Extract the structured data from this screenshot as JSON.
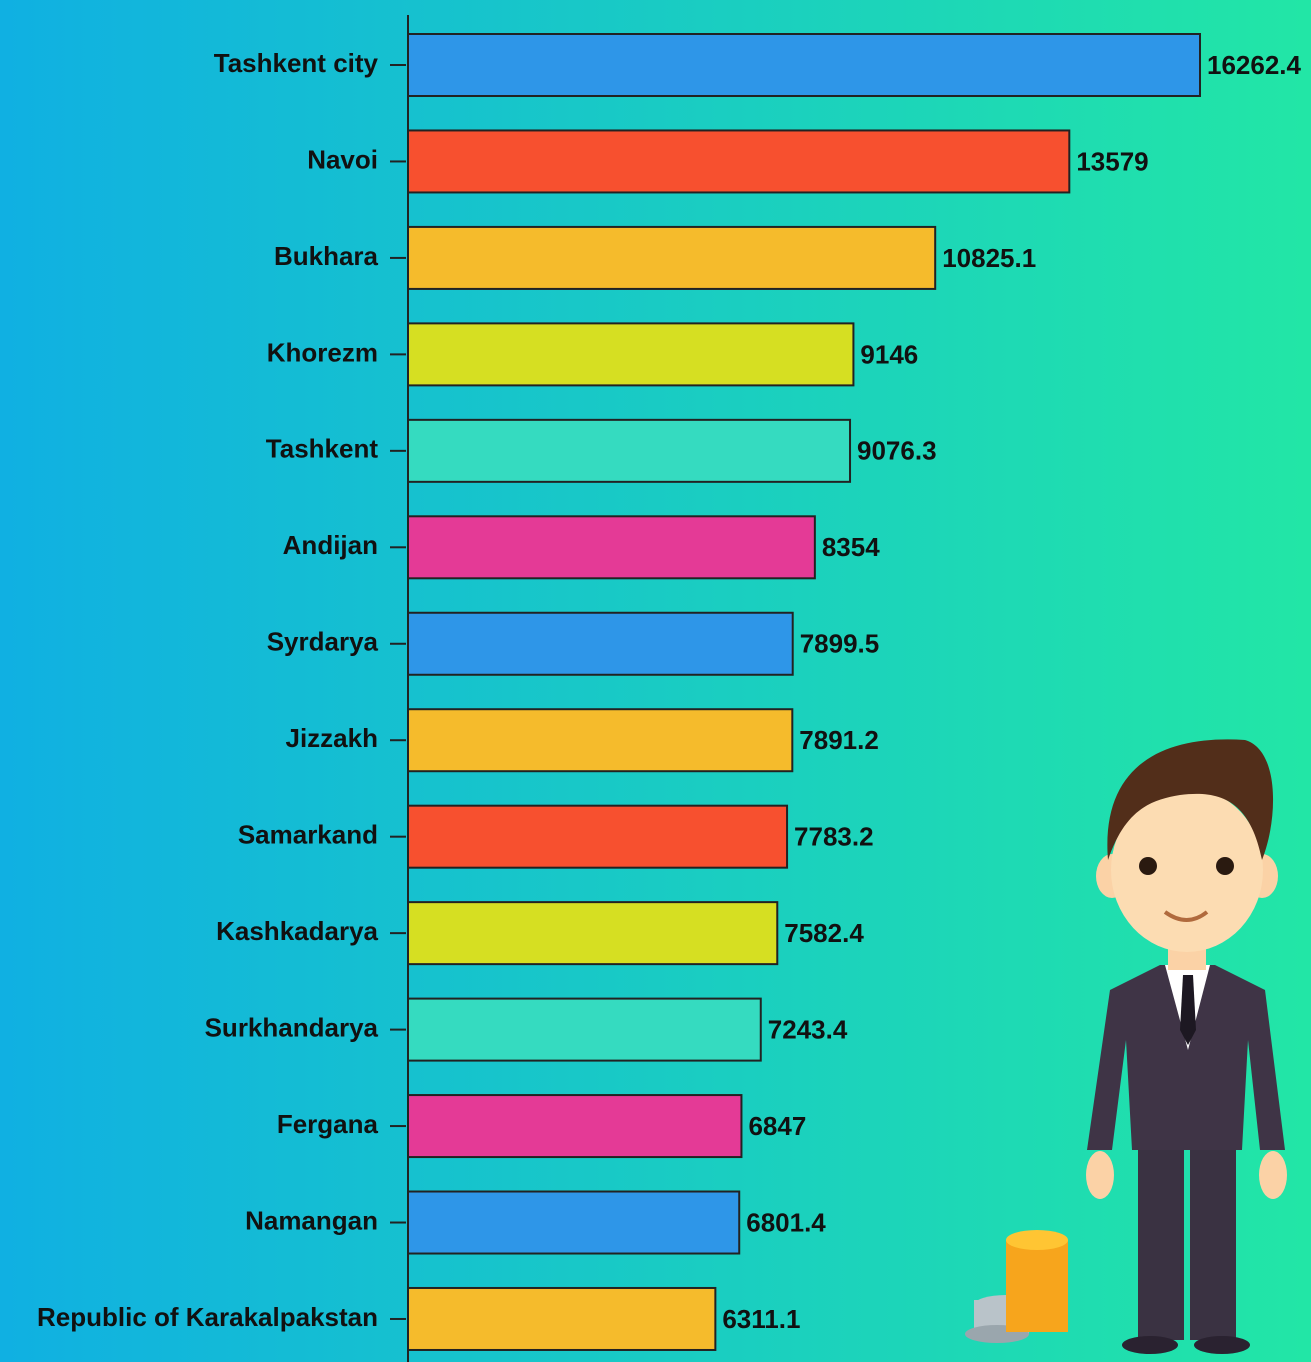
{
  "chart_data": {
    "type": "bar",
    "orientation": "horizontal",
    "categories": [
      "Tashkent city",
      "Navoi",
      "Bukhara",
      "Khorezm",
      "Tashkent",
      "Andijan",
      "Syrdarya",
      "Jizzakh",
      "Samarkand",
      "Kashkadarya",
      "Surkhandarya",
      "Fergana",
      "Namangan",
      "Republic of Karakalpakstan"
    ],
    "values": [
      16262.4,
      13579,
      10825.1,
      9146,
      9076.3,
      8354,
      7899.5,
      7891.2,
      7783.2,
      7582.4,
      7243.4,
      6847,
      6801.4,
      6311.1
    ],
    "colors": [
      "#2e96e8",
      "#f7502f",
      "#f5bb2c",
      "#d6df22",
      "#35dbc0",
      "#e43a96",
      "#2e96e8",
      "#f5bb2c",
      "#f7502f",
      "#d6df22",
      "#35dbc0",
      "#e43a96",
      "#2e96e8",
      "#f5bb2c"
    ]
  }
}
